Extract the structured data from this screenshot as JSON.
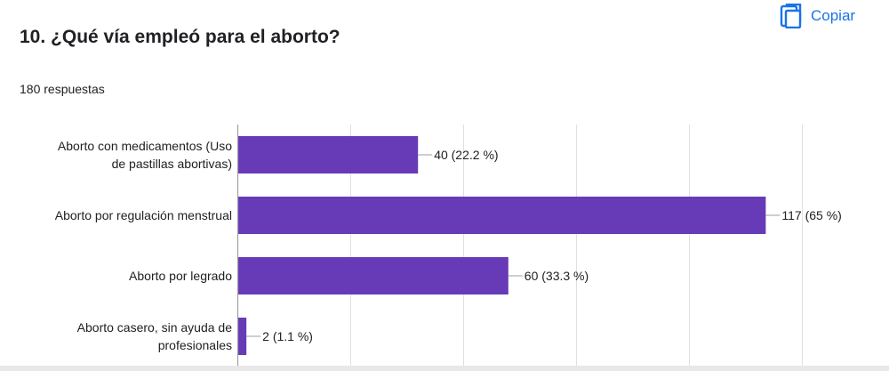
{
  "question": {
    "title": "10. ¿Qué vía empleó para el aborto?",
    "response_count": "180 respuestas"
  },
  "actions": {
    "copy_label": "Copiar",
    "copy_icon": "copy-icon"
  },
  "colors": {
    "bar": "#673ab7",
    "link": "#1a73e8",
    "grid": "#e0e0e0",
    "axis": "#9e9e9e",
    "text": "#202124"
  },
  "chart_data": {
    "type": "bar",
    "orientation": "horizontal",
    "categories": [
      [
        "Aborto con medicamentos (Uso",
        "de pastillas abortivas)"
      ],
      [
        "Aborto por regulación menstrual"
      ],
      [
        "Aborto por legrado"
      ],
      [
        "Aborto casero, sin ayuda de",
        "profesionales"
      ]
    ],
    "values": [
      40,
      117,
      60,
      2
    ],
    "data_labels": [
      "40 (22.2 %)",
      "117 (65 %)",
      "60 (33.3 %)",
      "2 (1.1 %)"
    ],
    "xlim": [
      0,
      125
    ],
    "x_gridlines": [
      0,
      25,
      50,
      75,
      100,
      125
    ],
    "grid": true,
    "legend": "none"
  }
}
